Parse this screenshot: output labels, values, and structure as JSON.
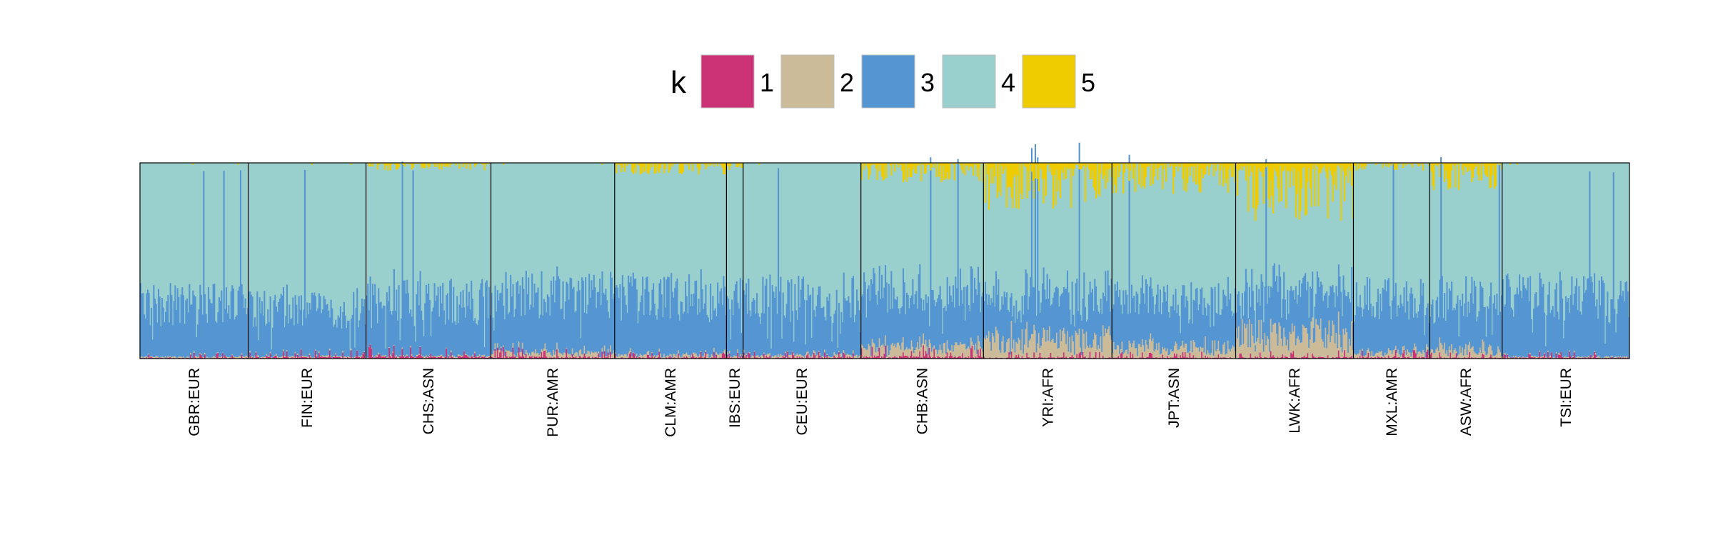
{
  "chart_data": {
    "type": "bar",
    "subtype": "stacked-admixture",
    "legend": {
      "title": "k",
      "placement": "top-center",
      "entries": [
        {
          "label": "1",
          "color": "#CC3377"
        },
        {
          "label": "2",
          "color": "#CCBB99"
        },
        {
          "label": "3",
          "color": "#5596D2"
        },
        {
          "label": "4",
          "color": "#99CFCC"
        },
        {
          "label": "5",
          "color": "#EECC00"
        }
      ]
    },
    "ylim": [
      0,
      1
    ],
    "grid": false,
    "groups": [
      {
        "label": "GBR:EUR",
        "n": 91,
        "k1": 0.005,
        "k2": 0.005,
        "k3": 0.28,
        "k5": 0.0
      },
      {
        "label": "FIN:EUR",
        "n": 99,
        "k1": 0.008,
        "k2": 0.005,
        "k3": 0.26,
        "k5": 0.0
      },
      {
        "label": "CHS:ASN",
        "n": 105,
        "k1": 0.012,
        "k2": 0.005,
        "k3": 0.29,
        "k5": 0.02
      },
      {
        "label": "PUR:AMR",
        "n": 104,
        "k1": 0.01,
        "k2": 0.02,
        "k3": 0.3,
        "k5": 0.0
      },
      {
        "label": "CLM:AMR",
        "n": 94,
        "k1": 0.006,
        "k2": 0.012,
        "k3": 0.31,
        "k5": 0.03
      },
      {
        "label": "IBS:EUR",
        "n": 14,
        "k1": 0.005,
        "k2": 0.01,
        "k3": 0.3,
        "k5": 0.02
      },
      {
        "label": "CEU:EUR",
        "n": 99,
        "k1": 0.006,
        "k2": 0.01,
        "k3": 0.3,
        "k5": 0.0
      },
      {
        "label": "CHB:ASN",
        "n": 103,
        "k1": 0.012,
        "k2": 0.04,
        "k3": 0.29,
        "k5": 0.05
      },
      {
        "label": "YRI:AFR",
        "n": 108,
        "k1": 0.006,
        "k2": 0.08,
        "k3": 0.24,
        "k5": 0.12
      },
      {
        "label": "JPT:ASN",
        "n": 104,
        "k1": 0.006,
        "k2": 0.05,
        "k3": 0.25,
        "k5": 0.08
      },
      {
        "label": "LWK:AFR",
        "n": 99,
        "k1": 0.008,
        "k2": 0.1,
        "k3": 0.23,
        "k5": 0.15
      },
      {
        "label": "MXL:AMR",
        "n": 64,
        "k1": 0.008,
        "k2": 0.02,
        "k3": 0.28,
        "k5": 0.02
      },
      {
        "label": "ASW:AFR",
        "n": 61,
        "k1": 0.006,
        "k2": 0.04,
        "k3": 0.27,
        "k5": 0.07
      },
      {
        "label": "TSI:EUR",
        "n": 107,
        "k1": 0.006,
        "k2": 0.005,
        "k3": 0.31,
        "k5": 0.0
      }
    ],
    "x_tick_labels": [
      "GBR:EUR",
      "FIN:EUR",
      "CHS:ASN",
      "PUR:AMR",
      "CLM:AMR",
      "IBS:EUR",
      "CEU:EUR",
      "CHB:ASN",
      "YRI:AFR",
      "JPT:ASN",
      "LWK:AFR",
      "MXL:AMR",
      "ASW:AFR",
      "TSI:EUR"
    ]
  }
}
